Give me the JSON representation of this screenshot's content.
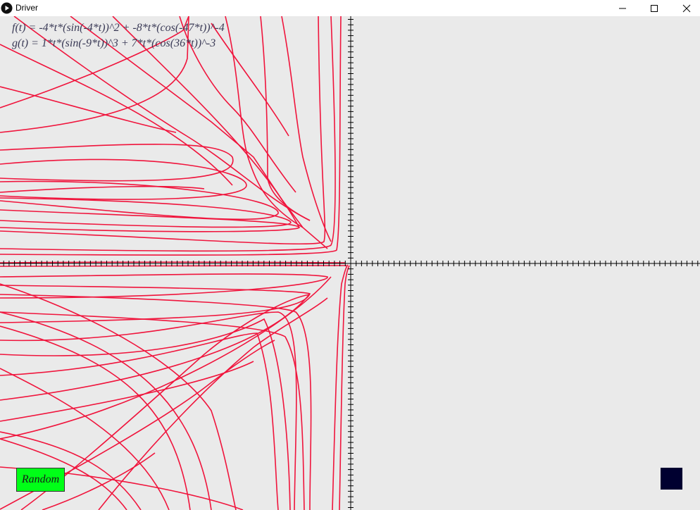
{
  "window": {
    "title": "Driver",
    "icon": "app-circle-play-icon",
    "controls": [
      "minimize-icon",
      "maximize-icon",
      "close-icon"
    ]
  },
  "formulas": {
    "f": "f(t) = -4*t*(sin(-4*t))^2 + -8*t*(cos(-47*t))^-4",
    "g": "g(t) = 1*t*(sin(-9*t))^3 + 7*t*(cos(36*t))^-3"
  },
  "random_button": {
    "label": "Random"
  },
  "colors": {
    "background": "#eaeaea",
    "curve": "#f0143c",
    "axes": "#000000",
    "formula_text": "#3a3a56",
    "random_button": "#00ff17",
    "swatch": "#000030"
  }
}
